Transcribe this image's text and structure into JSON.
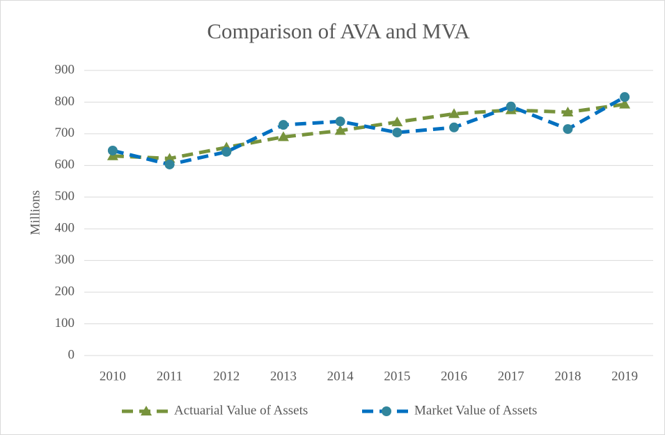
{
  "chart_data": {
    "type": "line",
    "title": "Comparison of AVA and MVA",
    "y_label": "Millions",
    "categories": [
      "2010",
      "2011",
      "2012",
      "2013",
      "2014",
      "2015",
      "2016",
      "2017",
      "2018",
      "2019"
    ],
    "series": [
      {
        "name": "Actuarial Value of Assets",
        "color": "#77933c",
        "marker": "triangle",
        "values": [
          630,
          622,
          657,
          690,
          710,
          737,
          763,
          775,
          768,
          793
        ]
      },
      {
        "name": "Market Value of Assets",
        "color": "#0070c0",
        "marker_color": "#31859c",
        "marker": "circle",
        "values": [
          647,
          603,
          643,
          728,
          739,
          704,
          720,
          786,
          715,
          816
        ]
      }
    ],
    "ylim": [
      0,
      900
    ],
    "yticks": [
      0,
      100,
      200,
      300,
      400,
      500,
      600,
      700,
      800,
      900
    ],
    "grid": true,
    "legend": "bottom"
  }
}
